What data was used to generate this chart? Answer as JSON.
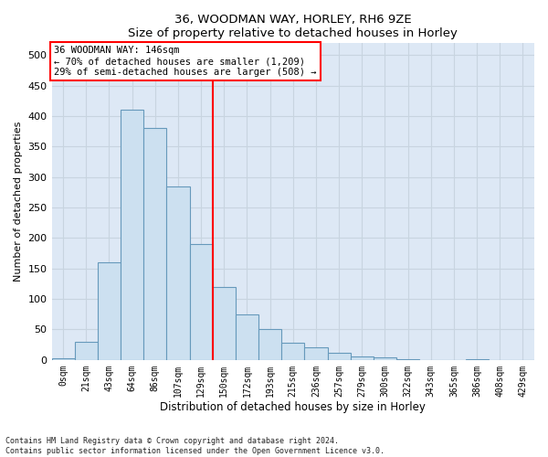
{
  "title1": "36, WOODMAN WAY, HORLEY, RH6 9ZE",
  "title2": "Size of property relative to detached houses in Horley",
  "xlabel": "Distribution of detached houses by size in Horley",
  "ylabel": "Number of detached properties",
  "bin_labels": [
    "0sqm",
    "21sqm",
    "43sqm",
    "64sqm",
    "86sqm",
    "107sqm",
    "129sqm",
    "150sqm",
    "172sqm",
    "193sqm",
    "215sqm",
    "236sqm",
    "257sqm",
    "279sqm",
    "300sqm",
    "322sqm",
    "343sqm",
    "365sqm",
    "386sqm",
    "408sqm",
    "429sqm"
  ],
  "bar_values": [
    2,
    30,
    160,
    410,
    380,
    285,
    190,
    120,
    75,
    50,
    28,
    20,
    12,
    5,
    4,
    1,
    0,
    0,
    1,
    0,
    0
  ],
  "bar_color": "#cce0f0",
  "bar_edge_color": "#6699bb",
  "ylim": [
    0,
    520
  ],
  "yticks": [
    0,
    50,
    100,
    150,
    200,
    250,
    300,
    350,
    400,
    450,
    500
  ],
  "annotation_line1": "36 WOODMAN WAY: 146sqm",
  "annotation_line2": "← 70% of detached houses are smaller (1,209)",
  "annotation_line3": "29% of semi-detached houses are larger (508) →",
  "footer_line1": "Contains HM Land Registry data © Crown copyright and database right 2024.",
  "footer_line2": "Contains public sector information licensed under the Open Government Licence v3.0.",
  "fig_bg_color": "#ffffff",
  "plot_bg_color": "#dde8f5",
  "grid_color": "#c8d4e0",
  "property_line_x": 7.0
}
